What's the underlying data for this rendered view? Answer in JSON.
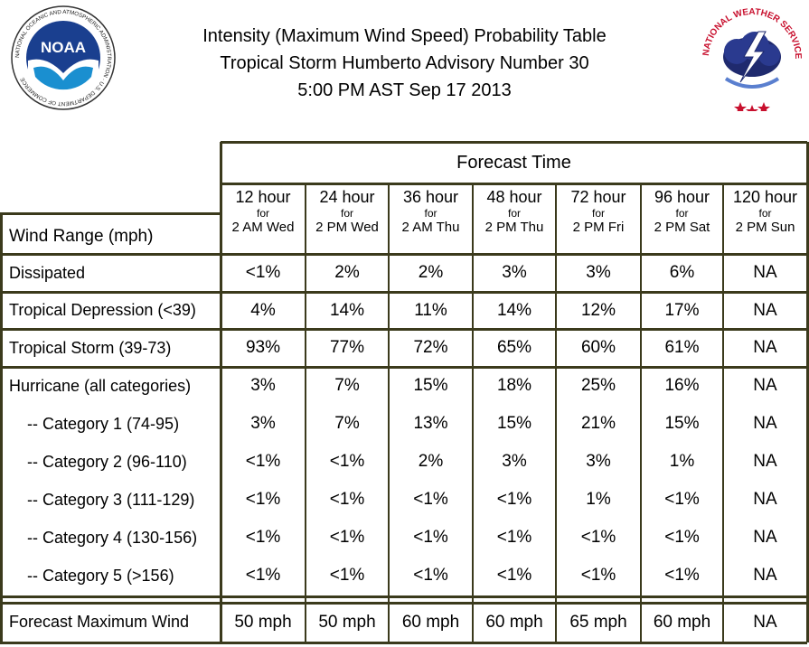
{
  "header": {
    "title_line1": "Intensity (Maximum Wind Speed) Probability Table",
    "title_line2": "Tropical Storm Humberto Advisory Number 30",
    "title_line3": "5:00 PM AST Sep 17 2013"
  },
  "logos": {
    "noaa_text": "NOAA",
    "noaa_ring_text": "NATIONAL OCEANIC AND ATMOSPHERIC ADMINISTRATION · U.S. DEPARTMENT OF COMMERCE",
    "nws_ring_text": "NATIONAL WEATHER SERVICE"
  },
  "table": {
    "group_header": "Forecast Time",
    "corner_label": "Wind Range (mph)",
    "columns": [
      {
        "hours": "12 hour",
        "for": "for",
        "when": "2 AM Wed"
      },
      {
        "hours": "24 hour",
        "for": "for",
        "when": "2 PM Wed"
      },
      {
        "hours": "36 hour",
        "for": "for",
        "when": "2 AM Thu"
      },
      {
        "hours": "48 hour",
        "for": "for",
        "when": "2 PM Thu"
      },
      {
        "hours": "72 hour",
        "for": "for",
        "when": "2 PM Fri"
      },
      {
        "hours": "96 hour",
        "for": "for",
        "when": "2 PM Sat"
      },
      {
        "hours": "120 hour",
        "for": "for",
        "when": "2 PM Sun"
      }
    ],
    "rows": [
      {
        "label": "Dissipated",
        "values": [
          "<1%",
          "2%",
          "2%",
          "3%",
          "3%",
          "6%",
          "NA"
        ]
      },
      {
        "label": "Tropical Depression (<39)",
        "values": [
          "4%",
          "14%",
          "11%",
          "14%",
          "12%",
          "17%",
          "NA"
        ]
      },
      {
        "label": "Tropical Storm (39-73)",
        "values": [
          "93%",
          "77%",
          "72%",
          "65%",
          "60%",
          "61%",
          "NA"
        ]
      },
      {
        "label": "Hurricane (all categories)",
        "values": [
          "3%",
          "7%",
          "15%",
          "18%",
          "25%",
          "16%",
          "NA"
        ]
      },
      {
        "label": "-- Category 1 (74-95)",
        "values": [
          "3%",
          "7%",
          "13%",
          "15%",
          "21%",
          "15%",
          "NA"
        ]
      },
      {
        "label": "-- Category 2 (96-110)",
        "values": [
          "<1%",
          "<1%",
          "2%",
          "3%",
          "3%",
          "1%",
          "NA"
        ]
      },
      {
        "label": "-- Category 3 (111-129)",
        "values": [
          "<1%",
          "<1%",
          "<1%",
          "<1%",
          "1%",
          "<1%",
          "NA"
        ]
      },
      {
        "label": "-- Category 4 (130-156)",
        "values": [
          "<1%",
          "<1%",
          "<1%",
          "<1%",
          "<1%",
          "<1%",
          "NA"
        ]
      },
      {
        "label": "-- Category 5 (>156)",
        "values": [
          "<1%",
          "<1%",
          "<1%",
          "<1%",
          "<1%",
          "<1%",
          "NA"
        ]
      },
      {
        "label": "Forecast Maximum Wind",
        "values": [
          "50 mph",
          "50 mph",
          "60 mph",
          "60 mph",
          "65 mph",
          "60 mph",
          "NA"
        ]
      }
    ]
  },
  "colors": {
    "rule": "#3b3a1c",
    "noaa_blue": "#1a3f8f",
    "nws_red": "#c8102e"
  }
}
